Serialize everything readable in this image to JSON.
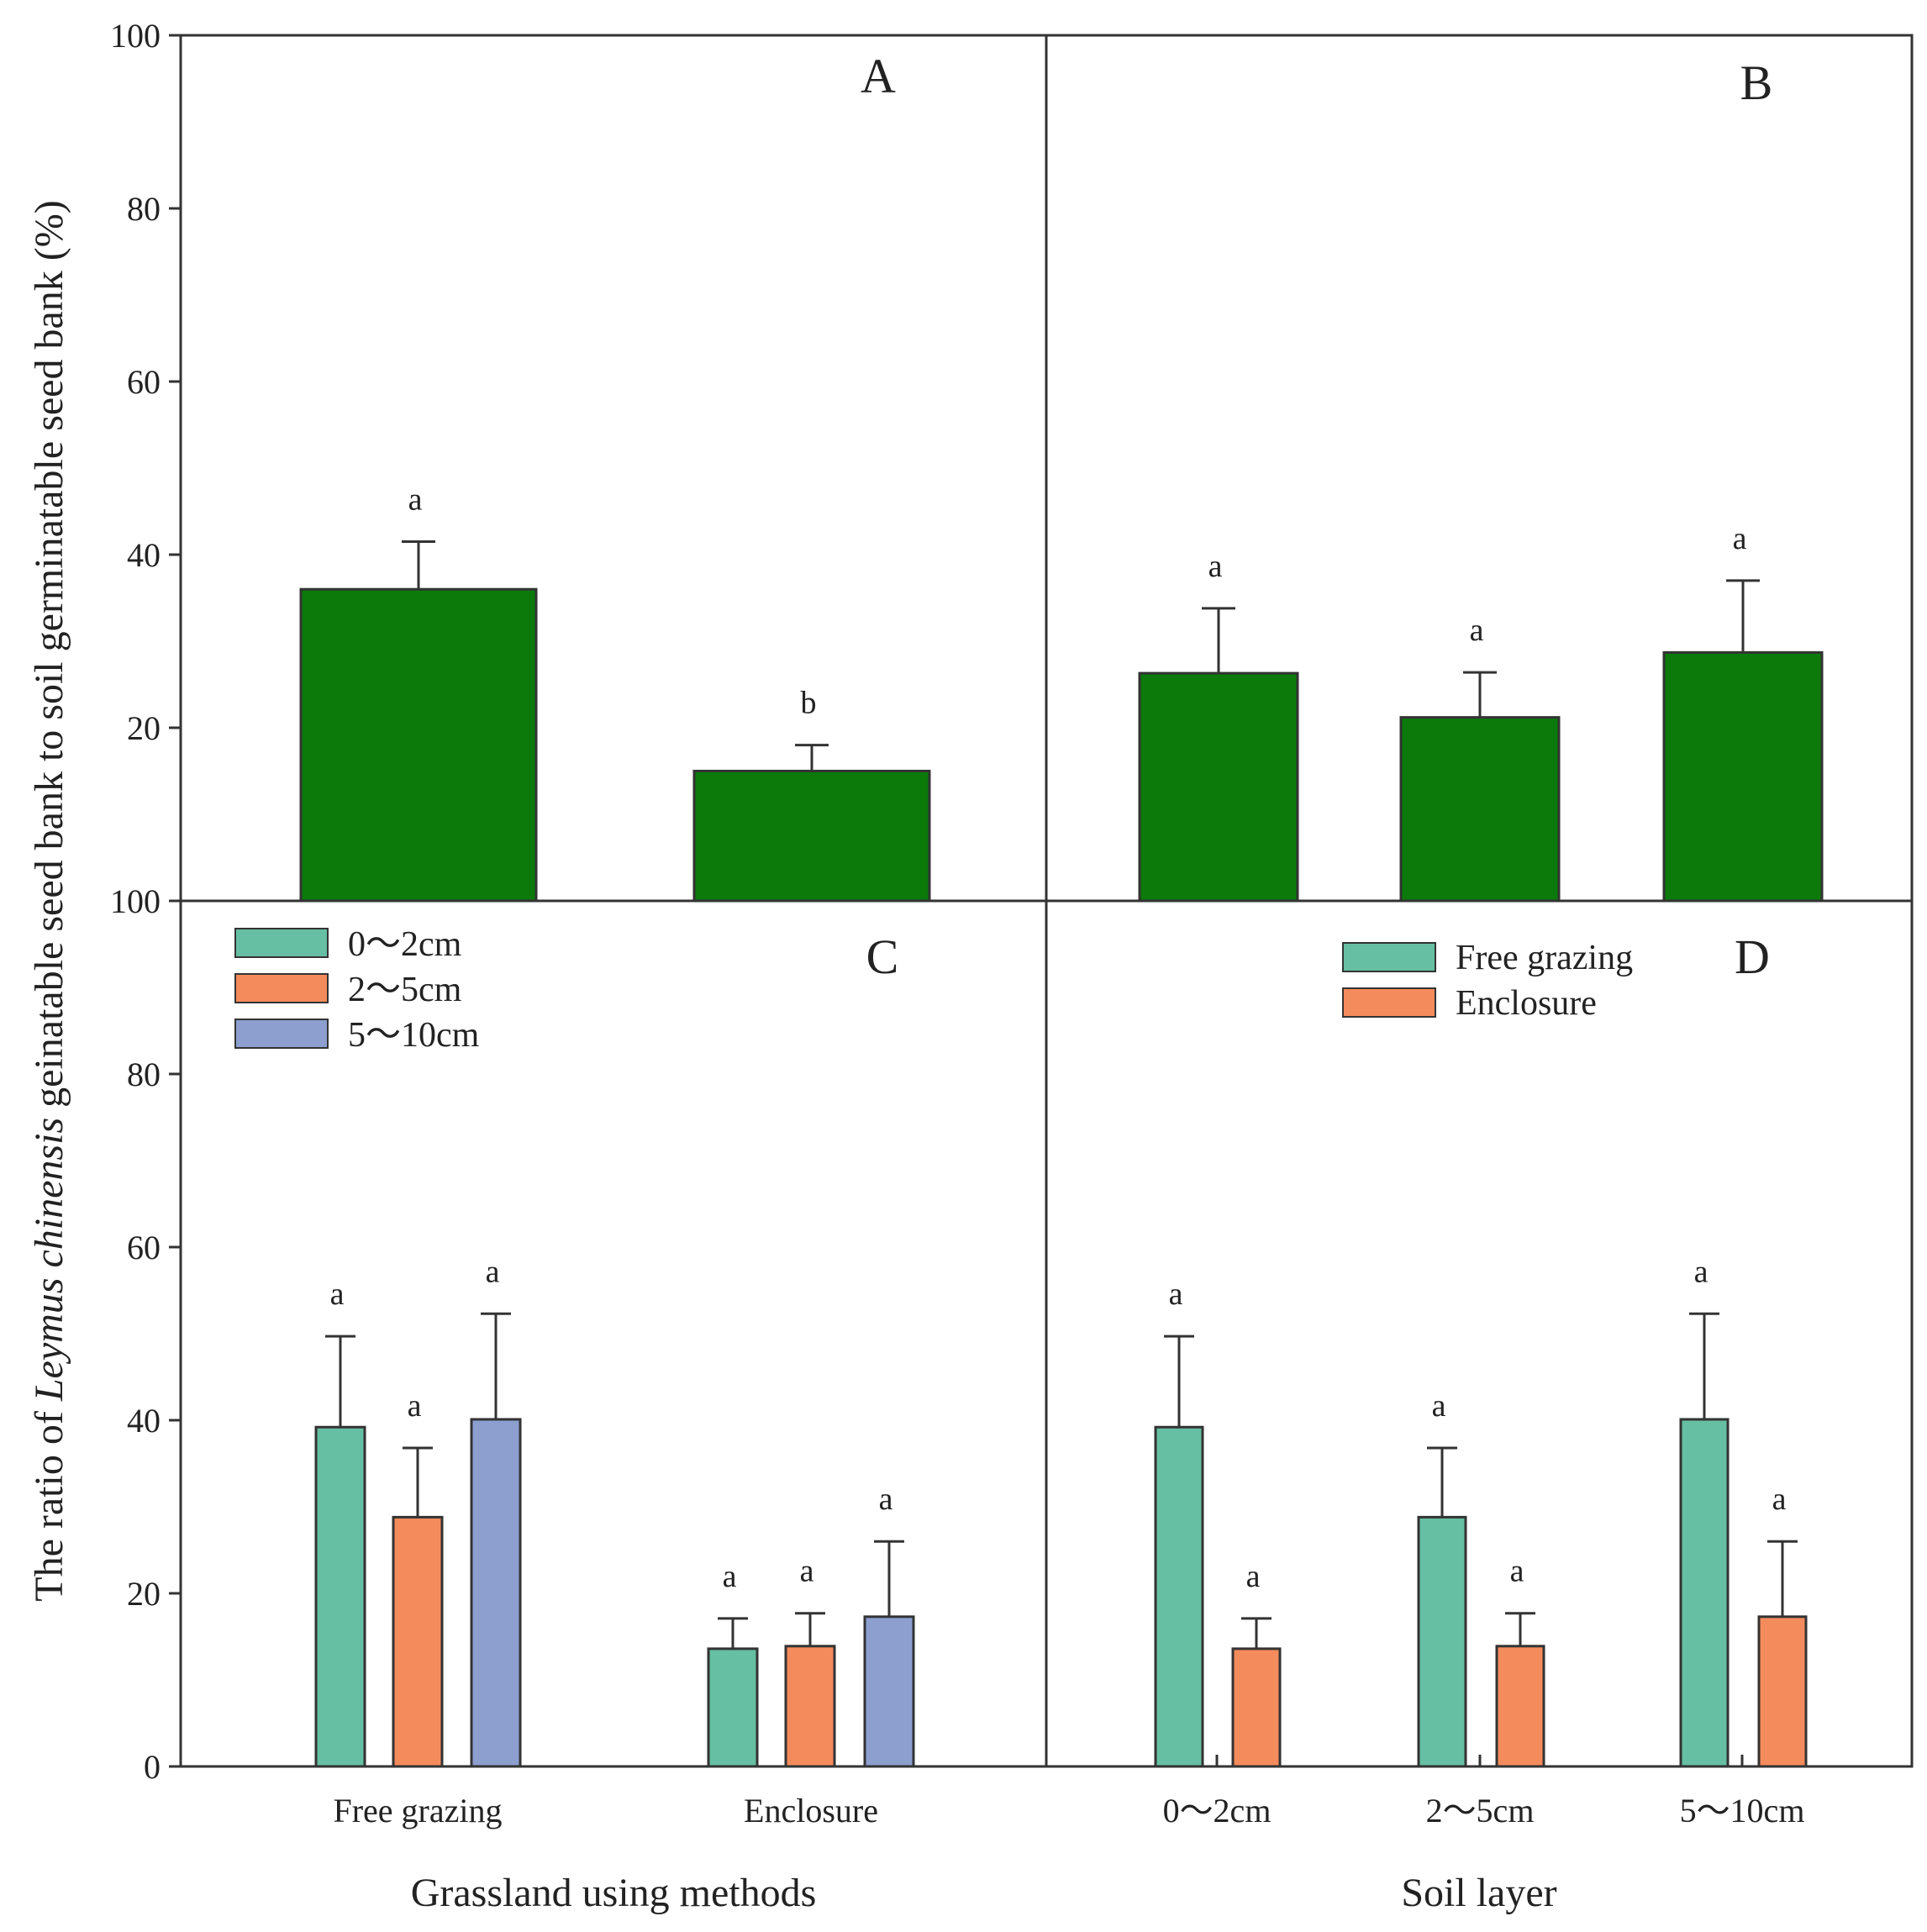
{
  "chart_data": [
    {
      "panel": "A",
      "type": "bar",
      "categories": [
        "",
        ""
      ],
      "series": [
        {
          "name": "",
          "color": "#0b7a0b",
          "values": [
            36.0,
            15.0
          ],
          "errors": [
            5.5,
            3.0
          ],
          "letters": [
            "a",
            "b"
          ]
        }
      ],
      "ylim": [
        0,
        100
      ]
    },
    {
      "panel": "B",
      "type": "bar",
      "categories": [
        "",
        "",
        ""
      ],
      "series": [
        {
          "name": "",
          "color": "#0b7a0b",
          "values": [
            26.3,
            21.2,
            28.7
          ],
          "errors": [
            7.5,
            5.2,
            8.3
          ],
          "letters": [
            "a",
            "a",
            "a"
          ]
        }
      ],
      "ylim": [
        0,
        100
      ]
    },
    {
      "panel": "C",
      "type": "bar",
      "categories": [
        "Free grazing",
        "Enclosure"
      ],
      "series": [
        {
          "name": "0～2cm",
          "color": "#66bfa2",
          "values": [
            39.2,
            13.6
          ],
          "errors": [
            10.5,
            3.5
          ],
          "letters": [
            "a",
            "a"
          ]
        },
        {
          "name": "2～5cm",
          "color": "#f48b5c",
          "values": [
            28.8,
            13.9
          ],
          "errors": [
            8.0,
            3.8
          ],
          "letters": [
            "a",
            "a"
          ]
        },
        {
          "name": "5～10cm",
          "color": "#8c9fcf",
          "values": [
            40.1,
            17.3
          ],
          "errors": [
            12.2,
            8.7
          ],
          "letters": [
            "a",
            "a"
          ]
        }
      ],
      "legend": "top-left",
      "ylim": [
        0,
        100
      ]
    },
    {
      "panel": "D",
      "type": "bar",
      "categories": [
        "0～2cm",
        "2～5cm",
        "5～10cm"
      ],
      "series": [
        {
          "name": "Free grazing",
          "color": "#66bfa2",
          "values": [
            39.2,
            28.8,
            40.1
          ],
          "errors": [
            10.5,
            8.0,
            12.2
          ],
          "letters": [
            "a",
            "a",
            "a"
          ]
        },
        {
          "name": "Enclosure",
          "color": "#f48b5c",
          "values": [
            13.6,
            13.9,
            17.3
          ],
          "errors": [
            3.5,
            3.8,
            8.7
          ],
          "letters": [
            "a",
            "a",
            "a"
          ]
        }
      ],
      "legend": "top-right",
      "ylim": [
        0,
        100
      ]
    }
  ],
  "yticks_top": [
    "100",
    "80",
    "60",
    "40",
    "20"
  ],
  "yticks_bottom": [
    "100",
    "80",
    "60",
    "40",
    "20",
    "0"
  ],
  "ylabel": {
    "prefix": "The ratio of ",
    "species": "Leymus chinensis",
    "suffix": " geinatable seed bank to soil germinatable seed bank (%)"
  },
  "xlabel_left": "Grassland using methods",
  "xlabel_right": "Soil layer",
  "axis_color": "#333333"
}
